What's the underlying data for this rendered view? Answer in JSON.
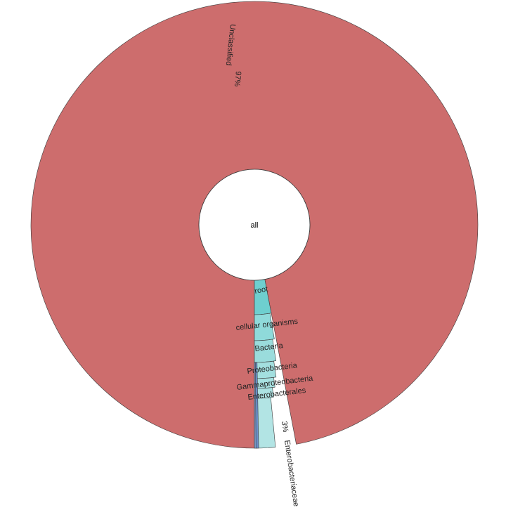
{
  "chart_data": {
    "type": "sunburst",
    "center_label": "all",
    "top_level": [
      {
        "name": "Unclassified",
        "percent": 97,
        "label": "Unclassified",
        "percent_label": "97%",
        "color": "#cd6d6d"
      },
      {
        "name": "root",
        "percent": 3,
        "label": "root",
        "color": "#6ecfcf"
      }
    ],
    "lineage": [
      {
        "name": "root",
        "label": "root",
        "percent": 3,
        "color": "#6ecfcf"
      },
      {
        "name": "cellular organisms",
        "label": "cellular organisms",
        "percent": 3,
        "color": "#8fdada"
      },
      {
        "name": "Bacteria",
        "label": "Bacteria",
        "percent": 3,
        "color": "#9adcdc"
      },
      {
        "name": "Proteobacteria",
        "label": "Proteobacteria",
        "percent": 3,
        "color": "#a3dfdf"
      },
      {
        "name": "Gammaproteobacteria",
        "label": "Gammaproteobacteria",
        "percent": 3,
        "color": "#a8e1e1"
      },
      {
        "name": "Enterobacterales",
        "label": "Enterobacterales",
        "percent": 3,
        "color": "#ace2e2"
      },
      {
        "name": "Enterobacteriaceae",
        "label": "Enterobacteriaceae",
        "percent": 3,
        "percent_label": "3%",
        "color": "#b2e4e4"
      }
    ],
    "minor_colors": [
      "#7fa6d6",
      "#6b8fc8"
    ]
  }
}
